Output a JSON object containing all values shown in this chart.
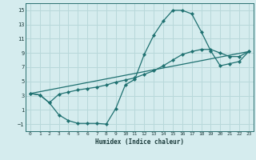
{
  "xlabel": "Humidex (Indice chaleur)",
  "bg_color": "#d5ecee",
  "grid_color": "#b8d8da",
  "line_color": "#1e7070",
  "xlim": [
    -0.5,
    23.5
  ],
  "ylim": [
    -2.0,
    16.0
  ],
  "xticks": [
    0,
    1,
    2,
    3,
    4,
    5,
    6,
    7,
    8,
    9,
    10,
    11,
    12,
    13,
    14,
    15,
    16,
    17,
    18,
    19,
    20,
    21,
    22,
    23
  ],
  "yticks": [
    -1,
    1,
    3,
    5,
    7,
    9,
    11,
    13,
    15
  ],
  "curve1_x": [
    0,
    1,
    2,
    3,
    4,
    5,
    6,
    7,
    8,
    9,
    10,
    11,
    12,
    13,
    14,
    15,
    16,
    17,
    18,
    19,
    20,
    21,
    22,
    23
  ],
  "curve1_y": [
    3.3,
    3.1,
    2.0,
    0.3,
    -0.5,
    -0.9,
    -0.9,
    -0.9,
    -1.0,
    1.2,
    4.5,
    5.3,
    8.8,
    11.5,
    13.5,
    15.0,
    15.0,
    14.5,
    12.0,
    9.3,
    7.2,
    7.5,
    7.8,
    9.2
  ],
  "curve2_x": [
    0,
    1,
    2,
    3,
    4,
    5,
    6,
    7,
    8,
    9,
    10,
    11,
    12,
    13,
    14,
    15,
    16,
    17,
    18,
    19,
    20,
    21,
    22,
    23
  ],
  "curve2_y": [
    3.3,
    3.1,
    2.0,
    3.2,
    3.5,
    3.8,
    4.0,
    4.2,
    4.5,
    4.9,
    5.2,
    5.5,
    6.0,
    6.5,
    7.2,
    8.0,
    8.8,
    9.2,
    9.5,
    9.5,
    9.0,
    8.5,
    8.5,
    9.2
  ],
  "line_x": [
    0,
    23
  ],
  "line_y": [
    3.3,
    9.2
  ]
}
